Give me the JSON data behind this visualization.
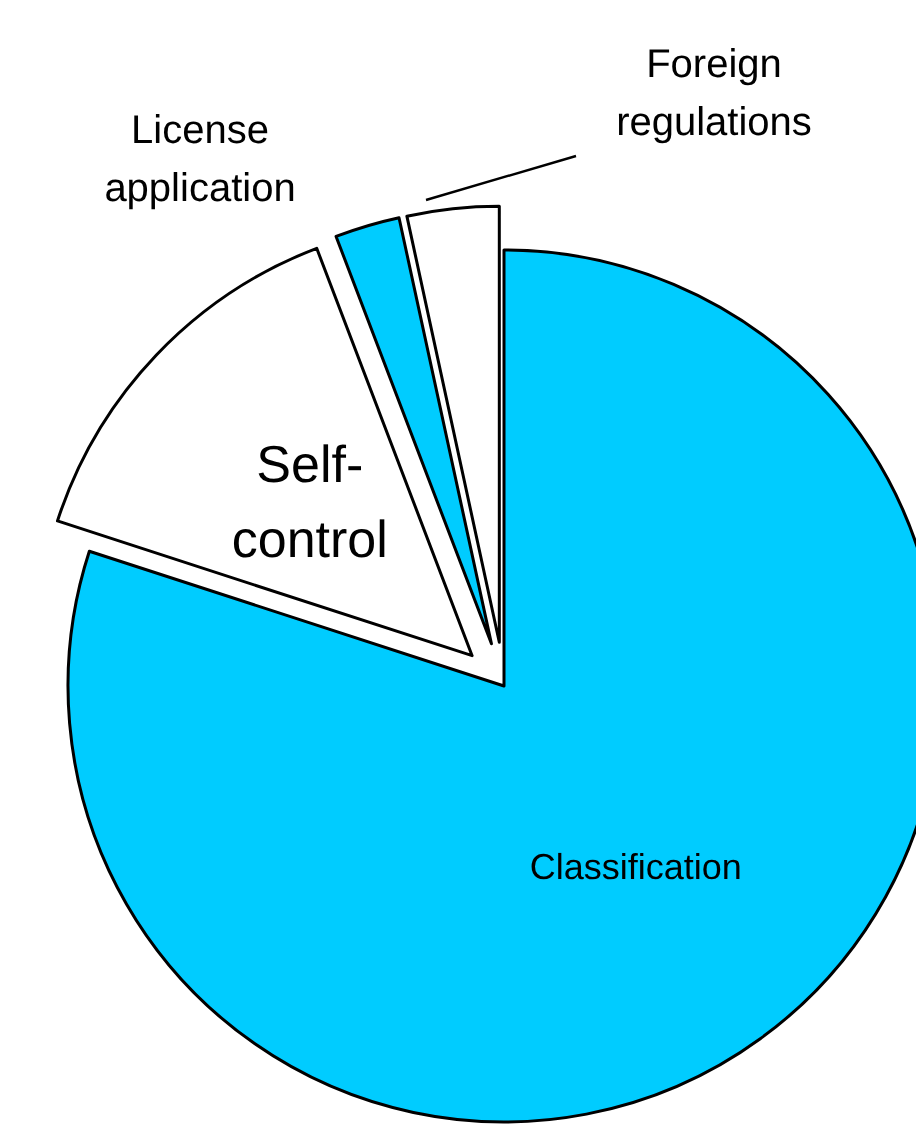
{
  "chart_data": {
    "type": "pie",
    "categories": [
      "Classification",
      "Self-\ncontrol",
      "License\napplication",
      "Foreign\nregulations"
    ],
    "values": [
      80,
      14.2,
      2.4,
      3.4
    ],
    "colors": [
      "#00ccff",
      "#ffffff",
      "#00ccff",
      "#ffffff"
    ]
  }
}
